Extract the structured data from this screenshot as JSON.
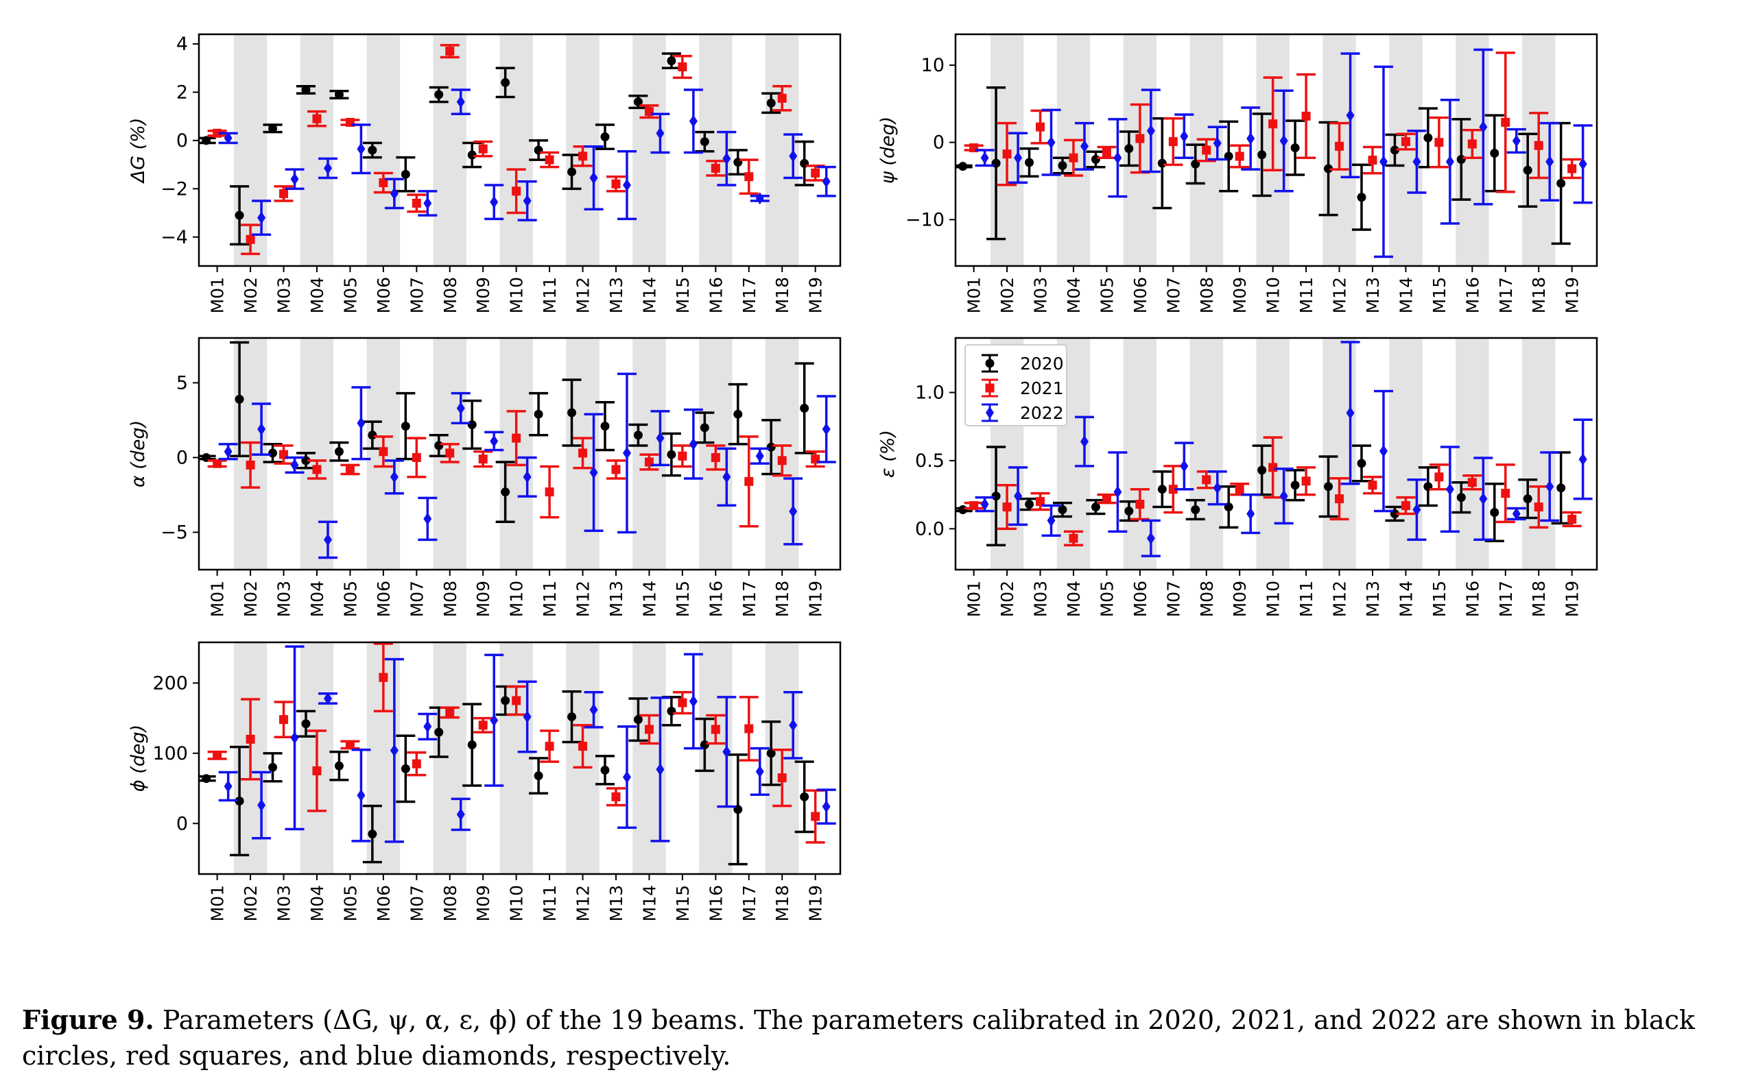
{
  "caption": {
    "label": "Figure 9.",
    "text": "Parameters (ΔG, ψ, α, ε, ϕ) of the 19 beams. The parameters calibrated in 2020, 2021, and 2022 are shown in black circles, red squares, and blue diamonds, respectively."
  },
  "legend": {
    "entries": [
      "2020",
      "2021",
      "2022"
    ],
    "placement": "upper-left of ε panel"
  },
  "colors": {
    "2020": "#000000",
    "2021": "#ee1111",
    "2022": "#1111ee",
    "band": "#e3e3e3"
  },
  "chart_data": [
    {
      "type": "scatter",
      "ylabel": "ΔG (%)",
      "ylim": [
        -5.2,
        4.4
      ],
      "yticks": [
        -4,
        -2,
        0,
        2,
        4
      ],
      "yticklabels": [
        "−4",
        "−2",
        "0",
        "2",
        "4"
      ],
      "categories": [
        "M01",
        "M02",
        "M03",
        "M04",
        "M05",
        "M06",
        "M07",
        "M08",
        "M09",
        "M10",
        "M11",
        "M12",
        "M13",
        "M14",
        "M15",
        "M16",
        "M17",
        "M18",
        "M19"
      ],
      "series": [
        {
          "name": "2020",
          "values": [
            0,
            -3.1,
            0.5,
            2.1,
            1.9,
            -0.4,
            -1.4,
            1.9,
            -0.6,
            2.4,
            -0.4,
            -1.3,
            0.15,
            1.6,
            3.3,
            -0.05,
            -0.9,
            1.55,
            -0.95
          ],
          "errors": [
            0.1,
            1.2,
            0.15,
            0.15,
            0.15,
            0.3,
            0.7,
            0.3,
            0.5,
            0.6,
            0.4,
            0.7,
            0.5,
            0.25,
            0.3,
            0.4,
            0.5,
            0.4,
            0.9
          ]
        },
        {
          "name": "2021",
          "values": [
            0.3,
            -4.1,
            -2.2,
            0.9,
            0.75,
            -1.75,
            -2.6,
            3.7,
            -0.35,
            -2.1,
            -0.8,
            -0.65,
            -1.8,
            1.2,
            3.05,
            -1.15,
            -1.5,
            1.75,
            -1.35
          ],
          "errors": [
            0.1,
            0.6,
            0.3,
            0.3,
            0.1,
            0.4,
            0.35,
            0.25,
            0.3,
            0.9,
            0.3,
            0.4,
            0.3,
            0.25,
            0.45,
            0.3,
            0.7,
            0.5,
            0.3
          ]
        },
        {
          "name": "2022",
          "values": [
            0.1,
            -3.2,
            -1.6,
            -1.15,
            -0.35,
            -2.2,
            -2.6,
            1.6,
            -2.55,
            -2.5,
            null,
            -1.55,
            -1.85,
            0.3,
            0.8,
            -0.75,
            -2.4,
            -0.65,
            -1.7
          ],
          "errors": [
            0.2,
            0.7,
            0.4,
            0.4,
            1.0,
            0.6,
            0.5,
            0.5,
            0.7,
            0.8,
            null,
            1.3,
            1.4,
            0.8,
            1.3,
            1.1,
            0.1,
            0.9,
            0.6
          ]
        }
      ]
    },
    {
      "type": "scatter",
      "ylabel": "ψ (deg)",
      "ylim": [
        -16,
        14
      ],
      "yticks": [
        -10,
        0,
        10
      ],
      "yticklabels": [
        "−10",
        "0",
        "10"
      ],
      "categories": [
        "M01",
        "M02",
        "M03",
        "M04",
        "M05",
        "M06",
        "M07",
        "M08",
        "M09",
        "M10",
        "M11",
        "M12",
        "M13",
        "M14",
        "M15",
        "M16",
        "M17",
        "M18",
        "M19"
      ],
      "series": [
        {
          "name": "2020",
          "values": [
            -3.1,
            -2.7,
            -2.6,
            -3.0,
            -2.2,
            -0.8,
            -2.7,
            -2.8,
            -1.8,
            -1.6,
            -0.7,
            -3.4,
            -7.1,
            -1.0,
            0.6,
            -2.2,
            -1.4,
            -3.6,
            -5.3
          ],
          "errors": [
            0.1,
            9.8,
            1.8,
            1.0,
            1.0,
            2.2,
            5.8,
            2.5,
            4.5,
            5.3,
            3.5,
            6.0,
            4.2,
            2.0,
            3.8,
            5.2,
            4.9,
            4.7,
            7.8
          ]
        },
        {
          "name": "2021",
          "values": [
            -0.7,
            -1.5,
            2.0,
            -2.0,
            -1.3,
            0.5,
            0.1,
            -1.0,
            -1.8,
            2.4,
            3.4,
            -0.5,
            -2.3,
            0.1,
            0.0,
            -0.2,
            2.6,
            -0.4,
            -3.4
          ],
          "errors": [
            0.3,
            4.0,
            2.1,
            2.3,
            0.7,
            4.4,
            3.0,
            1.4,
            1.4,
            6.0,
            5.4,
            3.0,
            1.7,
            1.0,
            3.2,
            1.8,
            9.0,
            4.2,
            1.2
          ]
        },
        {
          "name": "2022",
          "values": [
            -2.0,
            -2.0,
            0.0,
            -0.5,
            -2.0,
            1.5,
            0.8,
            -0.1,
            0.5,
            0.2,
            null,
            3.5,
            -2.5,
            -2.5,
            -2.5,
            2.0,
            0.2,
            -2.5,
            -2.8
          ]
        },
        {
          "name": "2022-errors",
          "values": [
            1.0,
            3.2,
            4.2,
            3.0,
            5.0,
            5.3,
            2.8,
            2.1,
            4.0,
            6.5,
            null,
            8.0,
            12.3,
            4.0,
            8.0,
            10.0,
            1.5,
            5.0,
            5.0
          ]
        }
      ]
    },
    {
      "type": "scatter",
      "ylabel": "α (deg)",
      "ylim": [
        -7.5,
        8
      ],
      "yticks": [
        -5,
        0,
        5
      ],
      "yticklabels": [
        "−5",
        "0",
        "5"
      ],
      "categories": [
        "M01",
        "M02",
        "M03",
        "M04",
        "M05",
        "M06",
        "M07",
        "M08",
        "M09",
        "M10",
        "M11",
        "M12",
        "M13",
        "M14",
        "M15",
        "M16",
        "M17",
        "M18",
        "M19"
      ],
      "series": [
        {
          "name": "2020",
          "values": [
            0,
            3.9,
            0.3,
            -0.2,
            0.4,
            1.5,
            2.1,
            0.8,
            2.2,
            -2.3,
            2.9,
            3.0,
            2.1,
            1.5,
            0.2,
            2.0,
            2.9,
            0.7,
            3.3
          ],
          "errors": [
            0.1,
            3.8,
            0.6,
            0.5,
            0.6,
            0.9,
            2.2,
            0.7,
            1.6,
            2.0,
            1.4,
            2.2,
            1.6,
            0.7,
            1.4,
            1.0,
            2.0,
            1.8,
            3.0
          ]
        },
        {
          "name": "2021",
          "values": [
            -0.4,
            -0.5,
            0.2,
            -0.8,
            -0.8,
            0.4,
            0.0,
            0.3,
            -0.1,
            1.3,
            -2.3,
            0.3,
            -0.8,
            -0.3,
            0.1,
            0.0,
            -1.6,
            -0.2,
            -0.1
          ]
        },
        {
          "name": "2021-errors",
          "values": [
            0.2,
            1.5,
            0.6,
            0.6,
            0.3,
            1.0,
            1.3,
            0.6,
            0.5,
            1.8,
            1.7,
            1.0,
            0.6,
            0.5,
            0.7,
            0.8,
            3.0,
            1.0,
            0.5
          ]
        },
        {
          "name": "2022",
          "values": [
            0.4,
            1.9,
            -0.5,
            -5.5,
            2.3,
            -1.3,
            -4.1,
            3.3,
            1.1,
            -1.3,
            null,
            -1.0,
            0.3,
            1.3,
            0.9,
            -1.3,
            0.1,
            -3.6,
            1.9
          ],
          "errors": [
            0.5,
            1.7,
            0.5,
            1.2,
            2.4,
            1.1,
            1.4,
            1.0,
            0.6,
            1.3,
            null,
            3.9,
            5.3,
            1.8,
            2.3,
            1.9,
            0.5,
            2.2,
            2.2
          ]
        }
      ]
    },
    {
      "type": "scatter",
      "ylabel": "ε (%)",
      "ylim": [
        -0.3,
        1.4
      ],
      "yticks": [
        0.0,
        0.5,
        1.0
      ],
      "yticklabels": [
        "0.0",
        "0.5",
        "1.0"
      ],
      "categories": [
        "M01",
        "M02",
        "M03",
        "M04",
        "M05",
        "M06",
        "M07",
        "M08",
        "M09",
        "M10",
        "M11",
        "M12",
        "M13",
        "M14",
        "M15",
        "M16",
        "M17",
        "M18",
        "M19"
      ],
      "series": [
        {
          "name": "2020",
          "values": [
            0.14,
            0.24,
            0.18,
            0.14,
            0.16,
            0.13,
            0.29,
            0.14,
            0.16,
            0.43,
            0.32,
            0.31,
            0.48,
            0.11,
            0.31,
            0.23,
            0.12,
            0.22,
            0.3
          ],
          "errors": [
            0.01,
            0.36,
            0.04,
            0.05,
            0.05,
            0.07,
            0.13,
            0.07,
            0.15,
            0.18,
            0.11,
            0.22,
            0.13,
            0.05,
            0.14,
            0.11,
            0.21,
            0.14,
            0.26
          ]
        },
        {
          "name": "2021",
          "values": [
            0.17,
            0.16,
            0.2,
            -0.07,
            0.22,
            0.18,
            0.29,
            0.36,
            0.29,
            0.45,
            0.35,
            0.22,
            0.32,
            0.17,
            0.38,
            0.34,
            0.26,
            0.16,
            0.07
          ],
          "errors": [
            0.02,
            0.16,
            0.06,
            0.05,
            0.03,
            0.11,
            0.17,
            0.06,
            0.04,
            0.22,
            0.1,
            0.15,
            0.06,
            0.06,
            0.09,
            0.05,
            0.21,
            0.15,
            0.05
          ]
        },
        {
          "name": "2022",
          "values": [
            0.18,
            0.24,
            0.06,
            0.64,
            0.27,
            -0.07,
            0.46,
            0.3,
            0.11,
            0.24,
            null,
            0.85,
            0.57,
            0.14,
            0.29,
            0.22,
            0.11,
            0.31,
            0.51
          ],
          "errors": [
            0.05,
            0.21,
            0.11,
            0.18,
            0.29,
            0.13,
            0.17,
            0.12,
            0.14,
            0.2,
            null,
            0.52,
            0.44,
            0.22,
            0.31,
            0.3,
            0.04,
            0.25,
            0.29
          ]
        }
      ]
    },
    {
      "type": "scatter",
      "ylabel": "ϕ (deg)",
      "ylim": [
        -72,
        258
      ],
      "yticks": [
        0,
        100,
        200
      ],
      "yticklabels": [
        "0",
        "100",
        "200"
      ],
      "categories": [
        "M01",
        "M02",
        "M03",
        "M04",
        "M05",
        "M06",
        "M07",
        "M08",
        "M09",
        "M10",
        "M11",
        "M12",
        "M13",
        "M14",
        "M15",
        "M16",
        "M17",
        "M18",
        "M19"
      ],
      "series": [
        {
          "name": "2020",
          "values": [
            64,
            32,
            80,
            142,
            82,
            -15,
            78,
            130,
            112,
            175,
            68,
            152,
            76,
            148,
            160,
            112,
            20,
            100,
            38
          ],
          "errors": [
            3,
            77,
            20,
            18,
            20,
            40,
            47,
            35,
            58,
            20,
            25,
            36,
            20,
            30,
            20,
            37,
            78,
            45,
            50
          ]
        },
        {
          "name": "2021",
          "values": [
            97,
            120,
            148,
            75,
            112,
            208,
            85,
            158,
            140,
            175,
            110,
            110,
            38,
            134,
            172,
            134,
            135,
            65,
            10
          ],
          "errors": [
            5,
            57,
            25,
            57,
            5,
            48,
            16,
            7,
            10,
            20,
            22,
            30,
            12,
            20,
            15,
            20,
            45,
            40,
            37
          ]
        },
        {
          "name": "2022",
          "values": [
            53,
            26,
            122,
            178,
            40,
            104,
            138,
            13,
            147,
            152,
            null,
            162,
            66,
            77,
            174,
            102,
            74,
            140,
            24
          ],
          "errors": [
            20,
            47,
            130,
            7,
            65,
            130,
            18,
            22,
            93,
            50,
            null,
            25,
            72,
            102,
            67,
            78,
            33,
            47,
            24
          ]
        }
      ]
    }
  ]
}
